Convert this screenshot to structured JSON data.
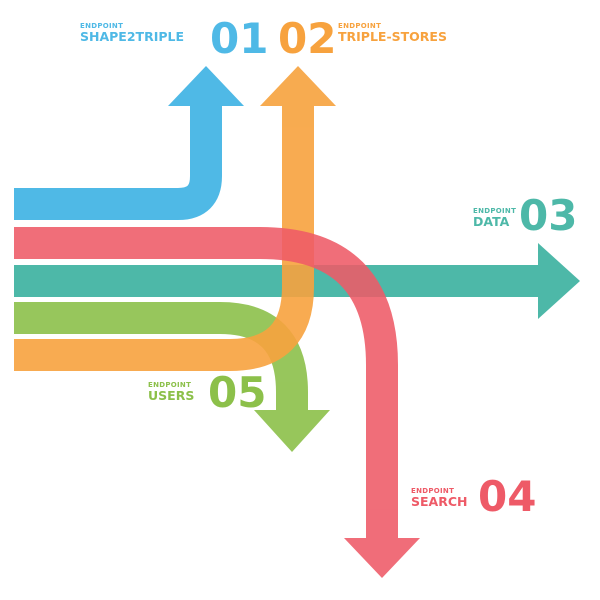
{
  "colors": {
    "shape2triple": "#4fb9e6",
    "triple_stores": "#f7a23e",
    "data": "#4db8a8",
    "search": "#ee5a67",
    "users": "#8cc04a"
  },
  "endpoints": {
    "e01": {
      "kicker": "ENDPOINT",
      "name": "SHAPE2TRIPLE",
      "number": "01"
    },
    "e02": {
      "kicker": "ENDPOINT",
      "name": "TRIPLE-STORES",
      "number": "02"
    },
    "e03": {
      "kicker": "ENDPOINT",
      "name": "DATA",
      "number": "03"
    },
    "e04": {
      "kicker": "ENDPOINT",
      "name": "SEARCH",
      "number": "04"
    },
    "e05": {
      "kicker": "ENDPOINT",
      "name": "USERS",
      "number": "05"
    }
  }
}
